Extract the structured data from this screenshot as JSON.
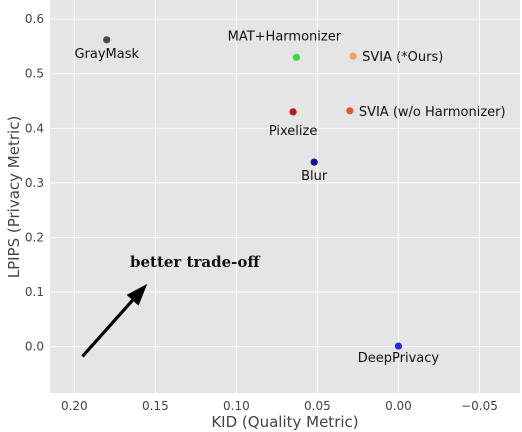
{
  "chart_data": {
    "type": "scatter",
    "title": "",
    "xlabel": "KID (Quality Metric)",
    "ylabel": "LPIPS (Privacy Metric)",
    "xlim": [
      0.215,
      -0.075
    ],
    "ylim": [
      -0.085,
      0.635
    ],
    "x_inverted": true,
    "grid": true,
    "background": "#e5e5e5",
    "grid_color": "#ffffff",
    "xticks": [
      0.2,
      0.15,
      0.1,
      0.05,
      0.0,
      -0.05
    ],
    "xtick_labels": [
      "0.20",
      "0.15",
      "0.10",
      "0.05",
      "0.00",
      "−0.05"
    ],
    "yticks": [
      0.0,
      0.1,
      0.2,
      0.3,
      0.4,
      0.5,
      0.6
    ],
    "ytick_labels": [
      "0.0",
      "0.1",
      "0.2",
      "0.3",
      "0.4",
      "0.5",
      "0.6"
    ],
    "points": [
      {
        "label": "GrayMask",
        "x": 0.18,
        "y": 0.562,
        "color": "#4a4a4a"
      },
      {
        "label": "MAT+Harmonizer",
        "x": 0.063,
        "y": 0.53,
        "color": "#33dd33"
      },
      {
        "label": "SVIA (*Ours)",
        "x": 0.028,
        "y": 0.532,
        "color": "#f4a060"
      },
      {
        "label": "Pixelize",
        "x": 0.065,
        "y": 0.43,
        "color": "#c01818"
      },
      {
        "label": "SVIA (w/o Harmonizer)",
        "x": 0.03,
        "y": 0.432,
        "color": "#e85535"
      },
      {
        "label": "Blur",
        "x": 0.052,
        "y": 0.338,
        "color": "#10109a"
      },
      {
        "label": "DeepPrivacy",
        "x": 0.0,
        "y": 0.001,
        "color": "#2030e0"
      }
    ],
    "annotations": [
      {
        "text": "better trade-off",
        "arrow_from": [
          0.195,
          -0.018
        ],
        "arrow_to": [
          0.155,
          0.115
        ]
      }
    ]
  }
}
